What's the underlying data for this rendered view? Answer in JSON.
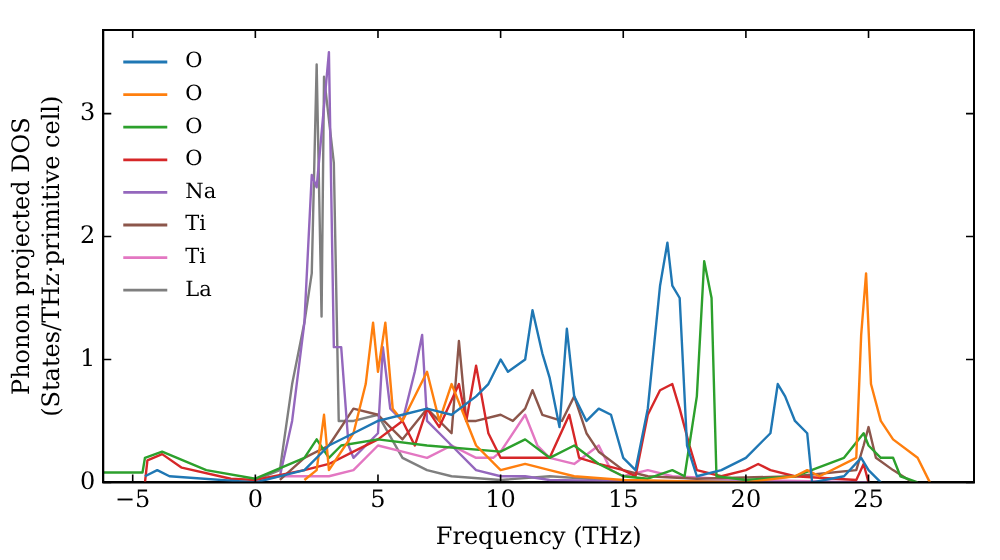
{
  "chart_data": {
    "type": "line",
    "xlabel": "Frequency (THz)",
    "ylabel": "Phonon projected DOS\n(States/THz·primitive cell)",
    "xlim": [
      -6.2,
      29.3
    ],
    "ylim": [
      0,
      3.68
    ],
    "xticks": [
      -5,
      0,
      5,
      10,
      15,
      20,
      25
    ],
    "yticks": [
      0,
      1,
      2,
      3
    ],
    "grid": false,
    "legend": "top left",
    "marker": "none",
    "line_style": "solid",
    "series": [
      {
        "name": "O",
        "color": "#1f77b4",
        "x": [
          -4.5,
          -4,
          -3.5,
          0,
          2,
          3,
          4,
          5,
          6,
          7,
          8,
          9,
          9.5,
          10,
          10.3,
          11,
          11.3,
          11.7,
          12,
          12.4,
          12.7,
          13,
          13.5,
          14,
          14.5,
          15,
          15.5,
          16,
          16.5,
          16.8,
          17,
          17.3,
          17.6,
          18,
          19,
          20,
          21,
          21.3,
          21.6,
          22,
          22.5,
          22.7,
          24,
          24.7,
          25,
          25.5
        ],
        "values": [
          0.05,
          0.1,
          0.05,
          0,
          0.1,
          0.3,
          0.4,
          0.5,
          0.55,
          0.6,
          0.55,
          0.7,
          0.8,
          1.0,
          0.9,
          1.0,
          1.4,
          1.05,
          0.85,
          0.45,
          1.25,
          0.7,
          0.5,
          0.6,
          0.55,
          0.2,
          0.1,
          0.6,
          1.6,
          1.95,
          1.6,
          1.5,
          0.3,
          0.05,
          0.1,
          0.2,
          0.4,
          0.8,
          0.7,
          0.5,
          0.4,
          0,
          0.05,
          0.2,
          0.1,
          0
        ]
      },
      {
        "name": "O",
        "color": "#ff7f0e",
        "x": [
          2,
          2.5,
          2.8,
          3,
          4,
          4.5,
          4.8,
          5,
          5.3,
          5.6,
          6,
          7,
          7.5,
          8,
          9,
          10,
          11,
          12,
          13,
          15,
          20,
          22,
          22.5,
          23,
          24.5,
          24.7,
          24.9,
          25.1,
          25.5,
          26,
          27,
          27.5
        ],
        "values": [
          0.02,
          0.1,
          0.55,
          0.1,
          0.4,
          0.8,
          1.3,
          0.9,
          1.3,
          0.6,
          0.5,
          0.9,
          0.5,
          0.8,
          0.3,
          0.1,
          0.15,
          0.1,
          0.05,
          0.02,
          0,
          0.05,
          0.1,
          0.05,
          0.2,
          1.2,
          1.7,
          0.8,
          0.5,
          0.35,
          0.2,
          0
        ]
      },
      {
        "name": "O",
        "color": "#2ca02c",
        "x": [
          -6.2,
          -4.6,
          -4.5,
          -3.8,
          -2,
          0,
          2,
          2.5,
          3,
          3.5,
          5,
          7,
          10,
          11,
          12,
          13,
          14,
          15,
          16,
          17,
          17.5,
          18,
          18.3,
          18.6,
          18.8,
          20,
          22,
          24,
          24.8,
          25,
          25.5,
          26,
          26.3,
          27
        ],
        "values": [
          0.08,
          0.08,
          0.2,
          0.25,
          0.1,
          0.03,
          0.2,
          0.35,
          0.2,
          0.3,
          0.35,
          0.3,
          0.25,
          0.35,
          0.2,
          0.3,
          0.15,
          0.05,
          0.03,
          0.1,
          0.05,
          0.7,
          1.8,
          1.5,
          0.05,
          0.02,
          0.05,
          0.2,
          0.4,
          0.3,
          0.2,
          0.2,
          0.05,
          0
        ]
      },
      {
        "name": "O",
        "color": "#d62728",
        "x": [
          -4.5,
          -4.4,
          -3.8,
          -3,
          -1,
          0,
          2,
          3,
          4,
          5,
          6,
          6.5,
          7,
          7.5,
          8.3,
          8.6,
          9,
          9.5,
          10,
          11,
          12,
          12.8,
          13.2,
          14,
          15,
          15.5,
          16,
          16.5,
          17,
          17.3,
          17.7,
          18,
          19,
          20,
          20.5,
          21,
          22,
          24.5,
          24.8,
          25
        ],
        "values": [
          0,
          0.18,
          0.23,
          0.12,
          0.03,
          0.02,
          0.1,
          0.15,
          0.25,
          0.35,
          0.5,
          0.3,
          0.6,
          0.45,
          0.8,
          0.5,
          0.95,
          0.4,
          0.2,
          0.2,
          0.2,
          0.55,
          0.2,
          0.15,
          0.1,
          0.05,
          0.55,
          0.75,
          0.8,
          0.6,
          0.3,
          0.1,
          0.05,
          0.1,
          0.15,
          0.1,
          0.05,
          0.02,
          0.15,
          0
        ]
      },
      {
        "name": "Na",
        "color": "#9467bd",
        "x": [
          1,
          1.5,
          2,
          2.3,
          2.5,
          3,
          3.2,
          3.5,
          3.8,
          4,
          5,
          5.2,
          5.5,
          6,
          6.5,
          6.8,
          7,
          8,
          9,
          10,
          11,
          12,
          15,
          25
        ],
        "values": [
          0.05,
          0.5,
          1.3,
          2.5,
          2.4,
          3.5,
          1.1,
          1.1,
          0.3,
          0.2,
          0.4,
          1.1,
          0.6,
          0.5,
          0.9,
          1.2,
          0.5,
          0.3,
          0.1,
          0.05,
          0.05,
          0.02,
          0.01,
          0
        ]
      },
      {
        "name": "Ti",
        "color": "#8c564b",
        "x": [
          1,
          2,
          3,
          4,
          5,
          6,
          7,
          8,
          8.3,
          8.6,
          9,
          10,
          10.5,
          11,
          11.3,
          11.7,
          12.5,
          13,
          13.5,
          14,
          15,
          16,
          18,
          22,
          24.5,
          24.8,
          25,
          25.3,
          26,
          26.8
        ],
        "values": [
          0.02,
          0.2,
          0.3,
          0.6,
          0.55,
          0.35,
          0.6,
          0.4,
          1.15,
          0.5,
          0.5,
          0.55,
          0.5,
          0.6,
          0.75,
          0.55,
          0.5,
          0.7,
          0.4,
          0.25,
          0.1,
          0.05,
          0.03,
          0.05,
          0.1,
          0.3,
          0.45,
          0.2,
          0.1,
          0
        ]
      },
      {
        "name": "Ti",
        "color": "#e377c2",
        "x": [
          0,
          1,
          2,
          3,
          4,
          5,
          6,
          7,
          8,
          9,
          9.7,
          10,
          11,
          11.5,
          12,
          13,
          14,
          14.5,
          15,
          16,
          17,
          20,
          25
        ],
        "values": [
          0.02,
          0.05,
          0.05,
          0.05,
          0.1,
          0.3,
          0.25,
          0.2,
          0.3,
          0.2,
          0.2,
          0.25,
          0.55,
          0.3,
          0.2,
          0.15,
          0.3,
          0.1,
          0.05,
          0.1,
          0.05,
          0.02,
          0
        ]
      },
      {
        "name": "La",
        "color": "#7f7f7f",
        "x": [
          0,
          1,
          1.5,
          2,
          2.3,
          2.5,
          2.7,
          2.8,
          3.2,
          3.4,
          4,
          5,
          6,
          7,
          8,
          10,
          12,
          15,
          25
        ],
        "values": [
          0.02,
          0.1,
          0.8,
          1.3,
          1.7,
          3.4,
          1.35,
          3.3,
          2.6,
          0.5,
          0.5,
          0.55,
          0.2,
          0.1,
          0.05,
          0.02,
          0.05,
          0.01,
          0
        ]
      }
    ]
  }
}
